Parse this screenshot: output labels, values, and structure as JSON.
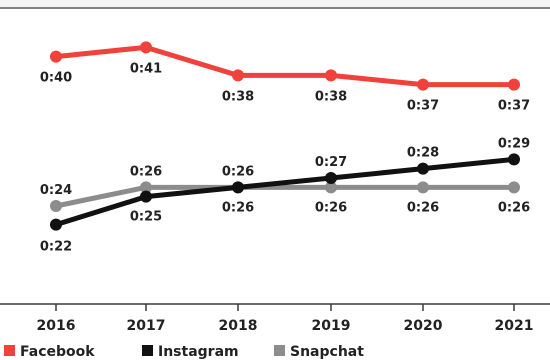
{
  "chart_data": {
    "type": "line",
    "title": "",
    "xlabel": "",
    "ylabel": "",
    "x": [
      "2016",
      "2017",
      "2018",
      "2019",
      "2020",
      "2021"
    ],
    "ylim": [
      "0:15",
      "0:45"
    ],
    "grid": false,
    "legend_position": "bottom-left",
    "series": [
      {
        "name": "Facebook",
        "color": "#f0413a",
        "values": [
          "0:40",
          "0:41",
          "0:38",
          "0:38",
          "0:37",
          "0:37"
        ]
      },
      {
        "name": "Instagram",
        "color": "#111111",
        "values": [
          "0:22",
          "0:25",
          "0:26",
          "0:27",
          "0:28",
          "0:29"
        ]
      },
      {
        "name": "Snapchat",
        "color": "#8c8c8c",
        "values": [
          "0:24",
          "0:26",
          "0:26",
          "0:26",
          "0:26",
          "0:26"
        ]
      }
    ]
  }
}
